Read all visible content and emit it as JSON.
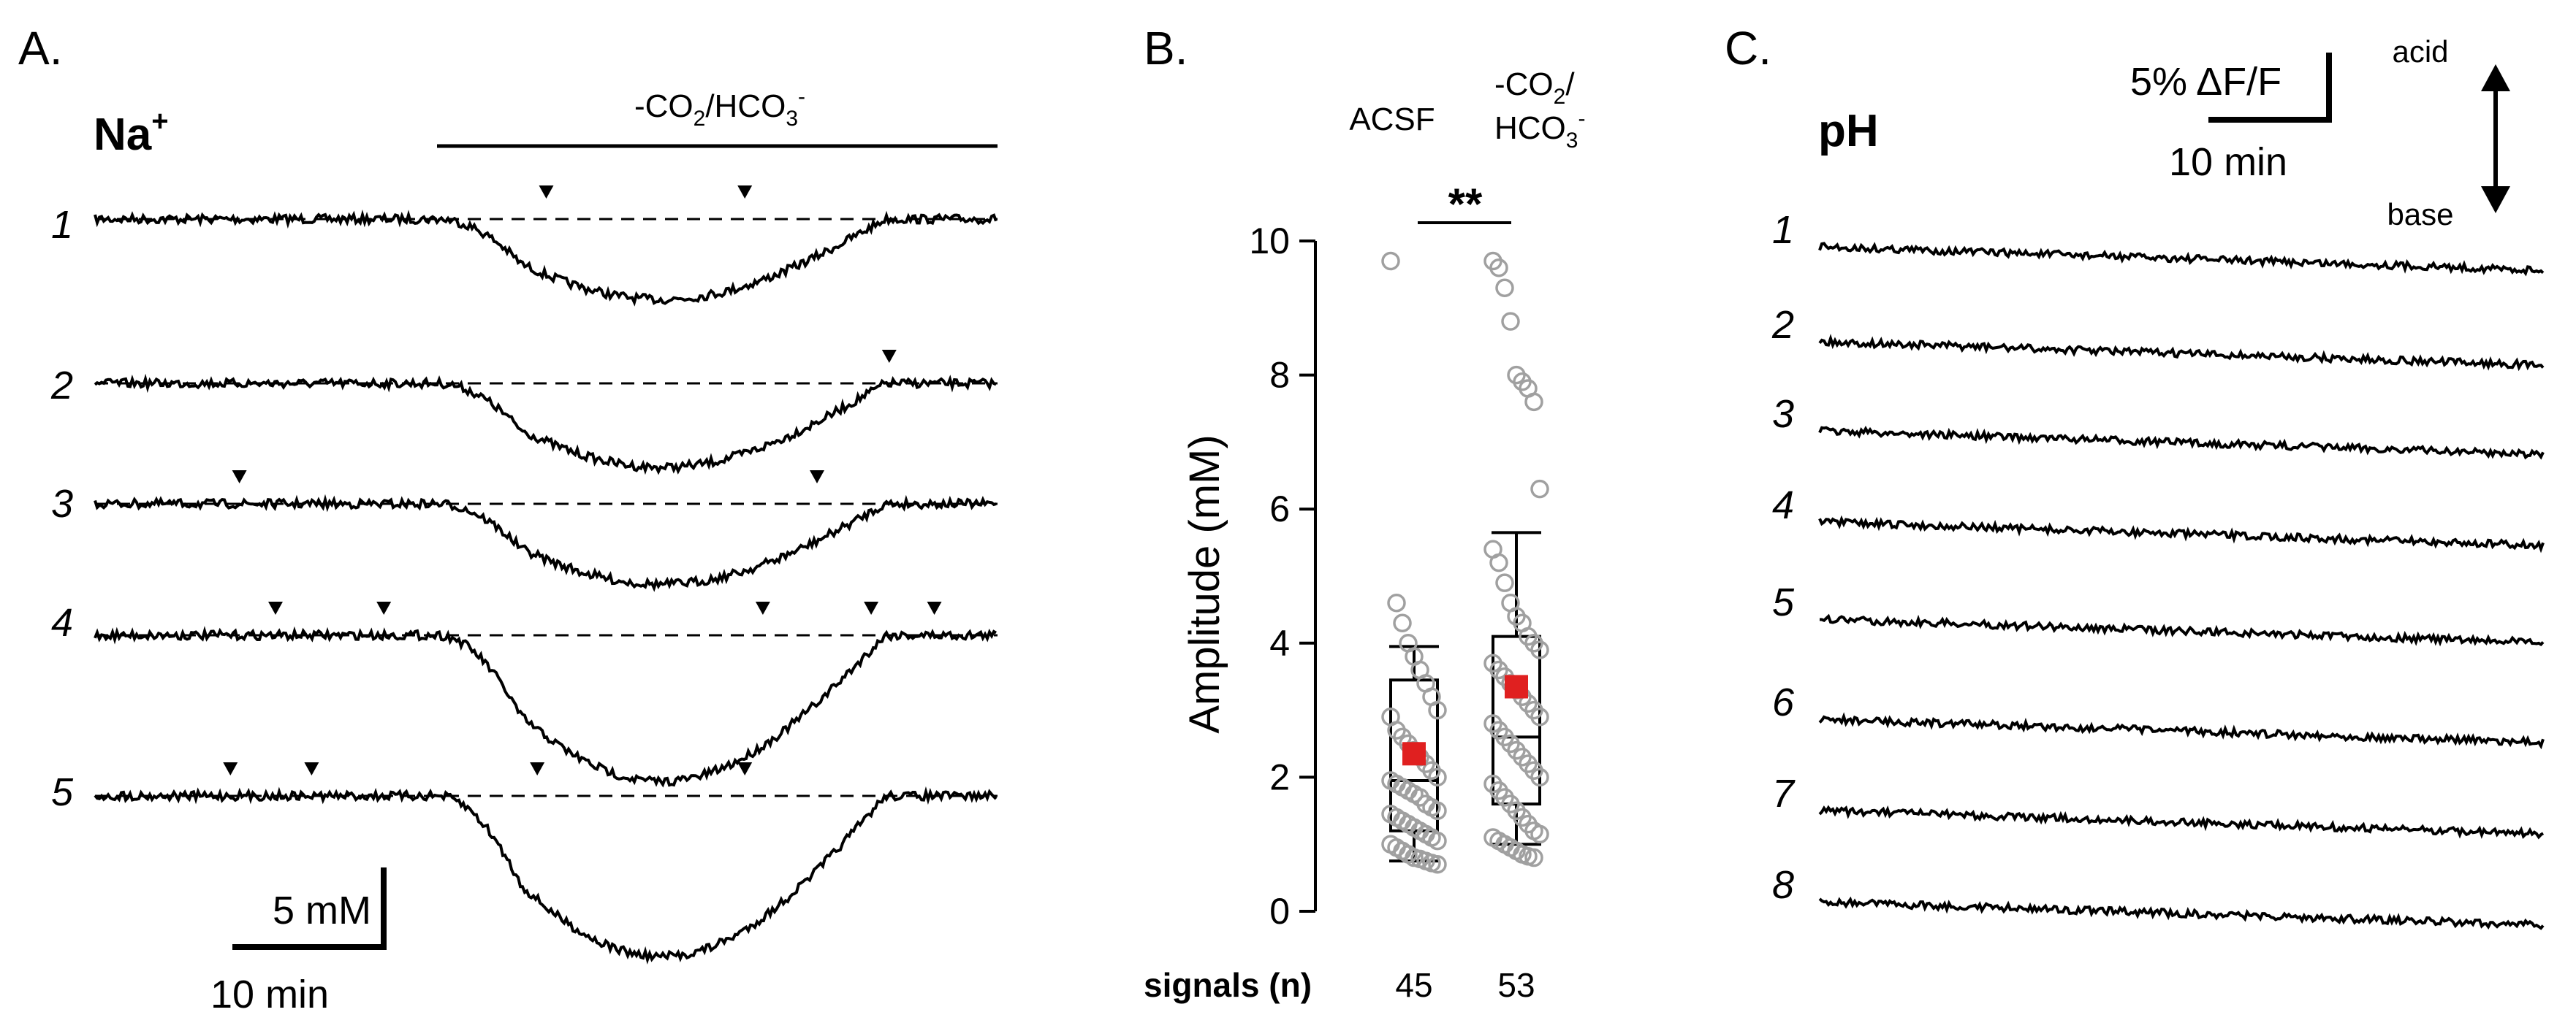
{
  "panels": {
    "a": {
      "letter": "A.",
      "ion_main": "Na",
      "ion_sup": "+",
      "condition": {
        "pre": "-CO",
        "sub1": "2",
        "mid": "/HCO",
        "sub2": "3",
        "sup": "-"
      },
      "traces": [
        {
          "label": "1",
          "events": [
            0.72,
            0.5
          ]
        },
        {
          "label": "2",
          "events": [
            0.88
          ]
        },
        {
          "label": "3",
          "events": [
            0.16,
            0.8
          ]
        },
        {
          "label": "4",
          "events": [
            0.2,
            0.32,
            0.74,
            0.86,
            0.93
          ]
        },
        {
          "label": "5",
          "events": [
            0.15,
            0.24,
            0.72,
            0.49
          ]
        }
      ],
      "scale_y": "5 mM",
      "scale_x": "10 min"
    },
    "b": {
      "letter": "B.",
      "n_title": "signals (n)"
    },
    "c": {
      "letter": "C.",
      "ion": "pH",
      "scale_y": "5% ΔF/F",
      "scale_x": "10 min",
      "arrow_up": "acid",
      "arrow_down": "base",
      "traces": [
        "1",
        "2",
        "3",
        "4",
        "5",
        "6",
        "7",
        "8"
      ]
    }
  },
  "chart_data": {
    "type": "box",
    "title": "",
    "ylabel": "Amplitude (mM)",
    "ylim": [
      0,
      10
    ],
    "yticks": [
      "0",
      "2",
      "4",
      "6",
      "8",
      "10"
    ],
    "significance": "**",
    "groups": [
      {
        "name": "ACSF",
        "n": "45",
        "mean": 2.35,
        "median": 1.95,
        "q1": 1.2,
        "q3": 3.45,
        "whisker_low": 0.75,
        "whisker_high": 3.95,
        "points": [
          9.7,
          4.6,
          4.3,
          4.0,
          3.8,
          3.6,
          3.4,
          3.2,
          3.0,
          2.9,
          2.7,
          2.6,
          2.5,
          2.4,
          2.3,
          2.2,
          2.1,
          2.0,
          1.95,
          1.9,
          1.85,
          1.8,
          1.75,
          1.7,
          1.6,
          1.55,
          1.5,
          1.45,
          1.4,
          1.35,
          1.3,
          1.25,
          1.2,
          1.15,
          1.1,
          1.05,
          1.0,
          0.95,
          0.9,
          0.85,
          0.8,
          0.78,
          0.75,
          0.72,
          0.7
        ]
      },
      {
        "name": "-CO2/HCO3-",
        "name_parts": {
          "pre": "-CO",
          "sub1": "2",
          "slash": "/",
          "mid": "HCO",
          "sub2": "3",
          "sup": "-"
        },
        "n": "53",
        "mean": 3.35,
        "median": 2.6,
        "q1": 1.6,
        "q3": 4.1,
        "whisker_low": 1.0,
        "whisker_high": 5.65,
        "points": [
          9.7,
          9.6,
          9.3,
          8.8,
          8.0,
          7.9,
          7.8,
          7.6,
          6.3,
          5.4,
          5.2,
          4.9,
          4.6,
          4.4,
          4.3,
          4.1,
          4.0,
          3.9,
          3.7,
          3.6,
          3.5,
          3.4,
          3.3,
          3.2,
          3.1,
          3.0,
          2.9,
          2.8,
          2.7,
          2.6,
          2.5,
          2.4,
          2.3,
          2.2,
          2.1,
          2.0,
          1.9,
          1.8,
          1.7,
          1.6,
          1.5,
          1.4,
          1.3,
          1.2,
          1.15,
          1.1,
          1.05,
          1.0,
          0.95,
          0.9,
          0.85,
          0.82,
          0.8
        ]
      }
    ],
    "colors": {
      "points": "#a0a0a0",
      "mean": "#e02020",
      "box": "#000000"
    }
  }
}
